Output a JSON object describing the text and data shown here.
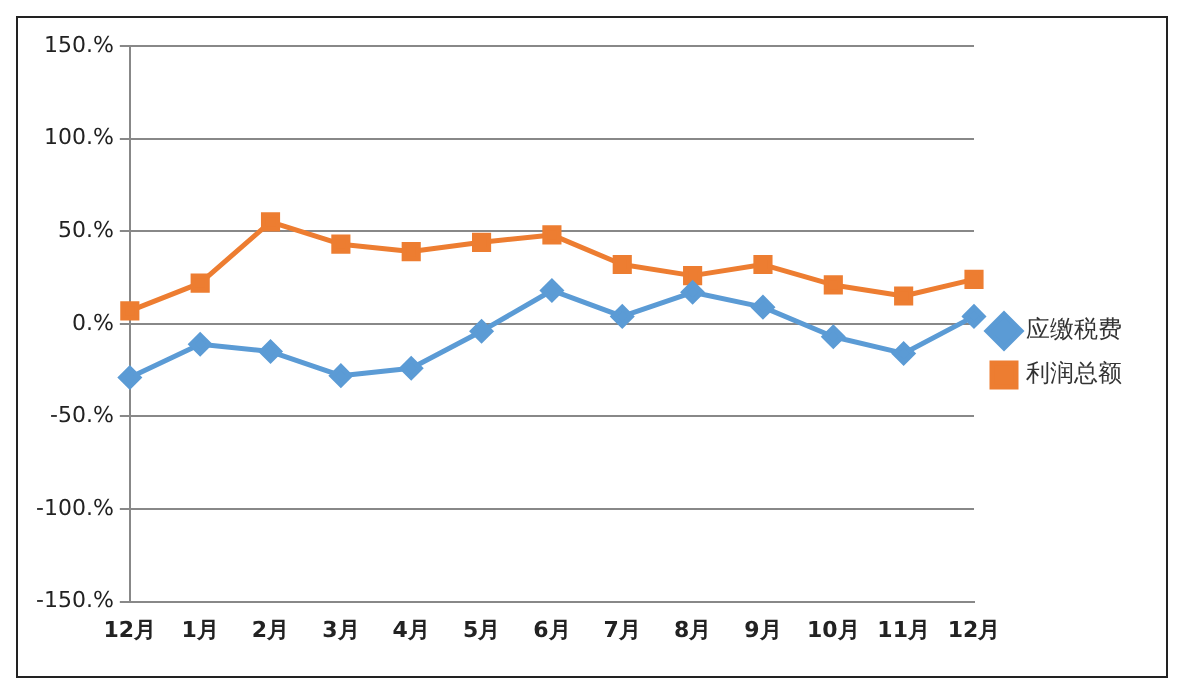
{
  "chart_data": {
    "type": "line",
    "categories": [
      "12月",
      "1月",
      "2月",
      "3月",
      "4月",
      "5月",
      "6月",
      "7月",
      "8月",
      "9月",
      "10月",
      "11月",
      "12月"
    ],
    "series": [
      {
        "name": "应缴税费",
        "color": "#5b9bd5",
        "marker": "diamond",
        "values": [
          -29,
          -11,
          -15,
          -28,
          -24,
          -4,
          18,
          4,
          17,
          9,
          -7,
          -16,
          4
        ]
      },
      {
        "name": "利润总额",
        "color": "#ed7d31",
        "marker": "square",
        "values": [
          7,
          22,
          55,
          43,
          39,
          44,
          48,
          32,
          26,
          32,
          21,
          15,
          24
        ]
      }
    ],
    "ylim": [
      -150,
      150
    ],
    "yticks": [
      {
        "value": -150,
        "label": "-150.%"
      },
      {
        "value": -100,
        "label": "-100.%"
      },
      {
        "value": -50,
        "label": "-50.%"
      },
      {
        "value": 0,
        "label": "0.%"
      },
      {
        "value": 50,
        "label": "50.%"
      },
      {
        "value": 100,
        "label": "100.%"
      },
      {
        "value": 150,
        "label": "150.%"
      }
    ],
    "grid": "y",
    "legend": "right",
    "line_style": "solid"
  }
}
